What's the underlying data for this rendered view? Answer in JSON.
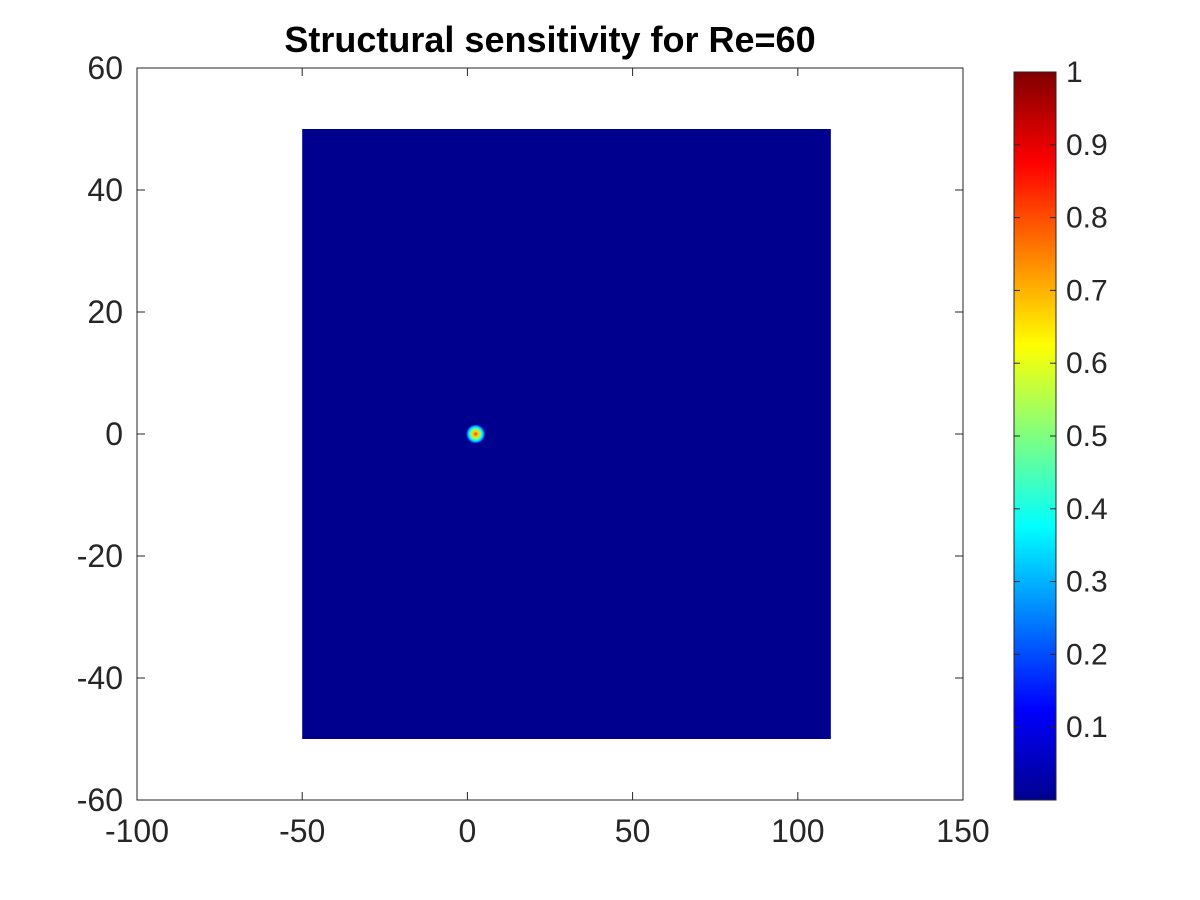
{
  "chart_data": {
    "type": "heatmap",
    "title": "Structural sensitivity for Re=60",
    "xlim": [
      -100,
      150
    ],
    "ylim": [
      -60,
      60
    ],
    "x_ticks": [
      "-100",
      "-50",
      "0",
      "50",
      "100",
      "150"
    ],
    "y_ticks": [
      "60",
      "40",
      "20",
      "0",
      "-20",
      "-40",
      "-60"
    ],
    "domain": {
      "x": [
        -50,
        110
      ],
      "y": [
        -50,
        50
      ]
    },
    "background_value": 0,
    "peak": {
      "x": 2.5,
      "y": 0,
      "value": 1
    },
    "colorbar": {
      "colormap": "jet",
      "range": [
        0,
        1
      ],
      "ticks": [
        "0.1",
        "0.2",
        "0.3",
        "0.4",
        "0.5",
        "0.6",
        "0.7",
        "0.8",
        "0.9",
        "1"
      ]
    },
    "grid": false,
    "legend": "none"
  }
}
